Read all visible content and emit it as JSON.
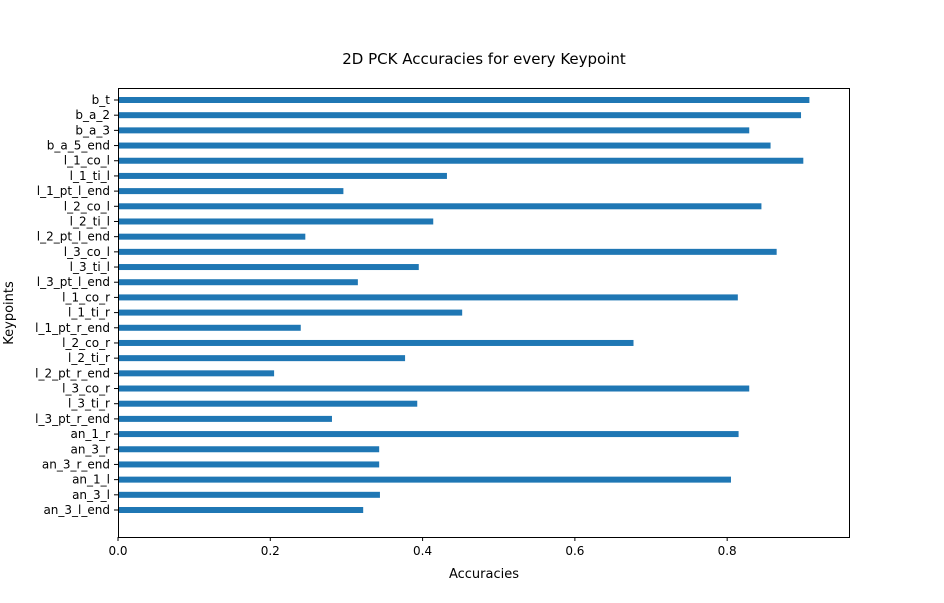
{
  "chart_data": {
    "type": "bar",
    "orientation": "horizontal",
    "title": "2D PCK Accuracies for every Keypoint",
    "xlabel": "Accuracies",
    "ylabel": "Keypoints",
    "xlim": [
      0,
      0.96
    ],
    "xticks": [
      "0.0",
      "0.2",
      "0.4",
      "0.6",
      "0.8"
    ],
    "grid": false,
    "bar_color": "#1f77b4",
    "categories": [
      "b_t",
      "b_a_2",
      "b_a_3",
      "b_a_5_end",
      "l_1_co_l",
      "l_1_ti_l",
      "l_1_pt_l_end",
      "l_2_co_l",
      "l_2_ti_l",
      "l_2_pt_l_end",
      "l_3_co_l",
      "l_3_ti_l",
      "l_3_pt_l_end",
      "l_1_co_r",
      "l_1_ti_r",
      "l_1_pt_r_end",
      "l_2_co_r",
      "l_2_ti_r",
      "l_2_pt_r_end",
      "l_3_co_r",
      "l_3_ti_r",
      "l_3_pt_r_end",
      "an_1_r",
      "an_3_r",
      "an_3_r_end",
      "an_1_l",
      "an_3_l",
      "an_3_l_end"
    ],
    "values": [
      0.908,
      0.897,
      0.829,
      0.857,
      0.9,
      0.432,
      0.296,
      0.845,
      0.414,
      0.246,
      0.865,
      0.395,
      0.315,
      0.814,
      0.452,
      0.24,
      0.677,
      0.377,
      0.205,
      0.829,
      0.393,
      0.281,
      0.815,
      0.343,
      0.343,
      0.805,
      0.344,
      0.322
    ]
  }
}
